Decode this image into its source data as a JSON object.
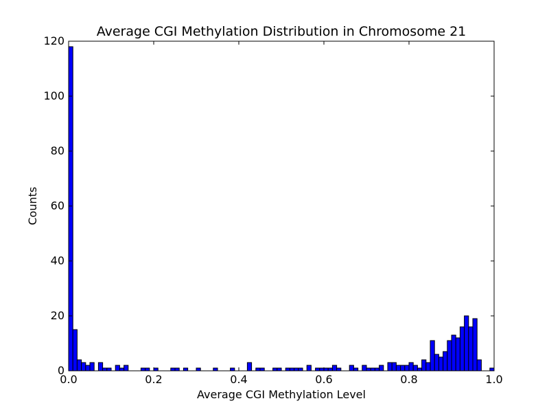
{
  "chart_data": {
    "type": "bar",
    "title": "Average CGI Methylation Distribution in Chromosome 21",
    "xlabel": "Average CGI Methylation Level",
    "ylabel": "Counts",
    "xlim": [
      0.0,
      1.0
    ],
    "ylim": [
      0,
      120
    ],
    "x_ticks": [
      "0.0",
      "0.2",
      "0.4",
      "0.6",
      "0.8",
      "1.0"
    ],
    "y_ticks": [
      "0",
      "20",
      "40",
      "60",
      "80",
      "100",
      "120"
    ],
    "grid": false,
    "bin_width": 0.01,
    "bin_starts": [
      0.0,
      0.01,
      0.02,
      0.03,
      0.04,
      0.05,
      0.06,
      0.07,
      0.08,
      0.09,
      0.1,
      0.11,
      0.12,
      0.13,
      0.14,
      0.15,
      0.16,
      0.17,
      0.18,
      0.19,
      0.2,
      0.21,
      0.22,
      0.23,
      0.24,
      0.25,
      0.26,
      0.27,
      0.28,
      0.29,
      0.3,
      0.31,
      0.32,
      0.33,
      0.34,
      0.35,
      0.36,
      0.37,
      0.38,
      0.39,
      0.4,
      0.41,
      0.42,
      0.43,
      0.44,
      0.45,
      0.46,
      0.47,
      0.48,
      0.49,
      0.5,
      0.51,
      0.52,
      0.53,
      0.54,
      0.55,
      0.56,
      0.57,
      0.58,
      0.59,
      0.6,
      0.61,
      0.62,
      0.63,
      0.64,
      0.65,
      0.66,
      0.67,
      0.68,
      0.69,
      0.7,
      0.71,
      0.72,
      0.73,
      0.74,
      0.75,
      0.76,
      0.77,
      0.78,
      0.79,
      0.8,
      0.81,
      0.82,
      0.83,
      0.84,
      0.85,
      0.86,
      0.87,
      0.88,
      0.89,
      0.9,
      0.91,
      0.92,
      0.93,
      0.94,
      0.95,
      0.96,
      0.97,
      0.98,
      0.99
    ],
    "counts": [
      118,
      15,
      4,
      3,
      2,
      3,
      0,
      3,
      1,
      1,
      0,
      2,
      1,
      2,
      0,
      0,
      0,
      1,
      1,
      0,
      1,
      0,
      0,
      0,
      1,
      1,
      0,
      1,
      0,
      0,
      1,
      0,
      0,
      0,
      1,
      0,
      0,
      0,
      1,
      0,
      0,
      0,
      3,
      0,
      1,
      1,
      0,
      0,
      1,
      1,
      0,
      1,
      1,
      1,
      1,
      0,
      2,
      0,
      1,
      1,
      1,
      1,
      2,
      1,
      0,
      0,
      2,
      1,
      0,
      2,
      1,
      1,
      1,
      2,
      0,
      3,
      3,
      2,
      2,
      2,
      3,
      2,
      1,
      4,
      3,
      11,
      6,
      5,
      7,
      11,
      13,
      12,
      16,
      20,
      16,
      19,
      4,
      0,
      0,
      1
    ],
    "bar_color": "#0000ff",
    "edge_color": "#000000"
  }
}
